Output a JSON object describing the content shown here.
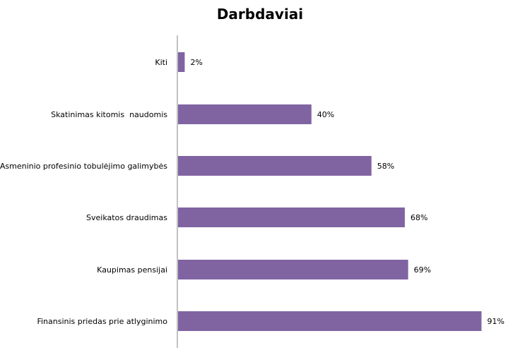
{
  "chart_data": {
    "type": "bar",
    "orientation": "horizontal",
    "title": "Darbdaviai",
    "categories": [
      "Kiti",
      "Skatinimas kitomis  naudomis",
      "Asmeninio profesinio tobulėjimo galimybės",
      "Sveikatos draudimas",
      "Kaupimas pensijai",
      "Finansinis priedas prie atlyginimo"
    ],
    "values": [
      2,
      40,
      58,
      68,
      69,
      91
    ],
    "data_labels": [
      "2%",
      "40%",
      "58%",
      "68%",
      "69%",
      "91%"
    ],
    "xlim": [
      0,
      100
    ],
    "grid": false,
    "legend": "none",
    "bar_color": "#8064A2"
  }
}
